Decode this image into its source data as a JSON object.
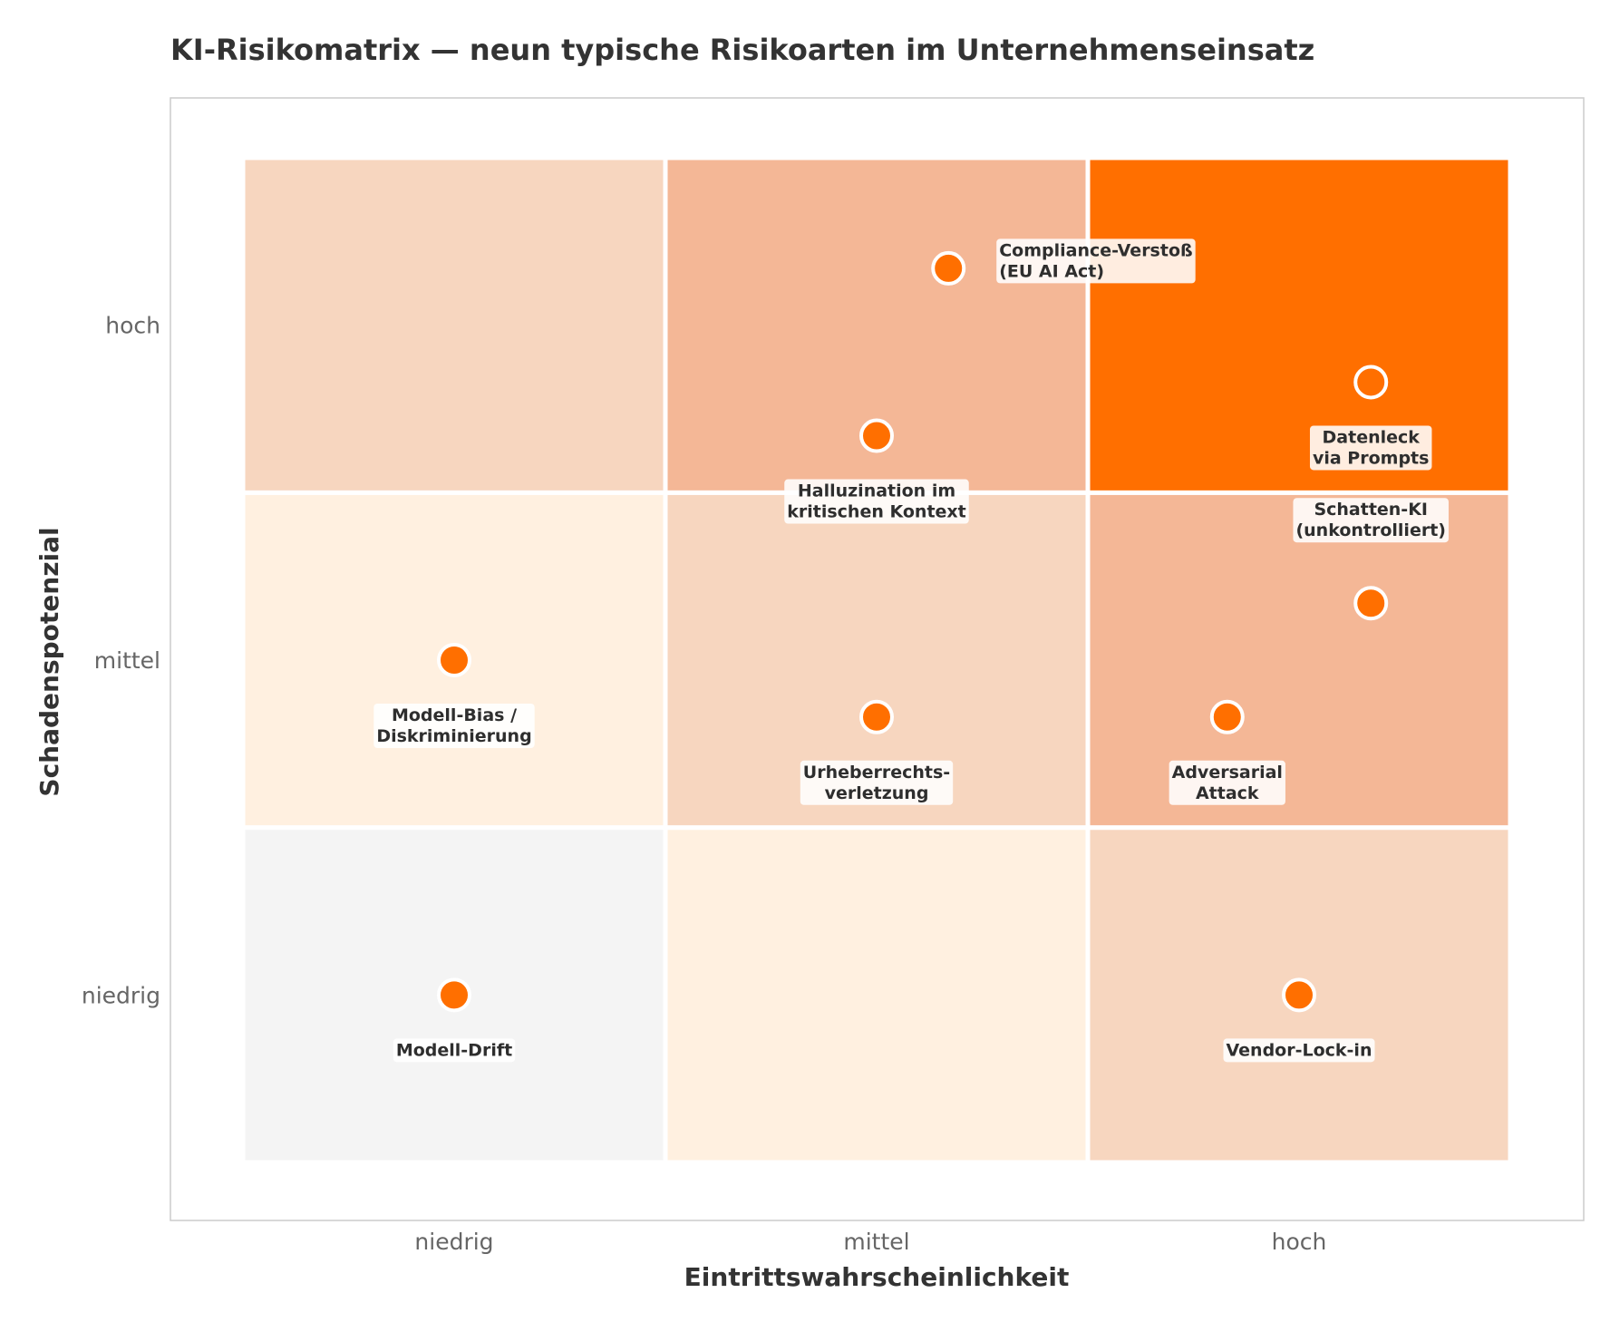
{
  "chart_data": {
    "type": "scatter",
    "title": "KI-Risikomatrix — neun typische Risikoarten im Unternehmenseinsatz",
    "xlabel": "Eintrittswahrscheinlichkeit",
    "ylabel": "Schadenspotenzial",
    "xlim": [
      -0.5,
      2.5
    ],
    "ylim": [
      -0.5,
      2.5
    ],
    "x_ticks": [
      "niedrig",
      "mittel",
      "hoch"
    ],
    "y_ticks": [
      "niedrig",
      "mittel",
      "hoch"
    ],
    "grid": false,
    "colors": {
      "point": "#ff6f00",
      "point_edge": "#ffffff",
      "frame": "#cccccc"
    },
    "cells": [
      {
        "x": 0,
        "y": 0,
        "color": "#f4f4f4"
      },
      {
        "x": 1,
        "y": 0,
        "color": "#fff0e0"
      },
      {
        "x": 2,
        "y": 0,
        "color": "#f7d6bf"
      },
      {
        "x": 0,
        "y": 1,
        "color": "#fff0e0"
      },
      {
        "x": 1,
        "y": 1,
        "color": "#f7d6bf"
      },
      {
        "x": 2,
        "y": 1,
        "color": "#f4b796"
      },
      {
        "x": 0,
        "y": 2,
        "color": "#f7d6bf"
      },
      {
        "x": 1,
        "y": 2,
        "color": "#f4b796"
      },
      {
        "x": 2,
        "y": 2,
        "color": "#ff6f00"
      }
    ],
    "points": [
      {
        "name": "Compliance-Verstoß\n(EU AI Act)",
        "x": 1.17,
        "y": 2.17,
        "label_pos": "right"
      },
      {
        "name": "Datenleck\nvia Prompts",
        "x": 2.17,
        "y": 1.83,
        "label_pos": "below"
      },
      {
        "name": "Halluzination im\nkritischen Kontext",
        "x": 1.0,
        "y": 1.67,
        "label_pos": "below"
      },
      {
        "name": "Schatten-KI\n(unkontrolliert)",
        "x": 2.17,
        "y": 1.17,
        "label_pos": "above"
      },
      {
        "name": "Modell-Bias /\nDiskriminierung",
        "x": 0.0,
        "y": 1.0,
        "label_pos": "below"
      },
      {
        "name": "Urheberrechts-\nverletzung",
        "x": 1.0,
        "y": 0.83,
        "label_pos": "below"
      },
      {
        "name": "Adversarial\nAttack",
        "x": 1.83,
        "y": 0.83,
        "label_pos": "below"
      },
      {
        "name": "Modell-Drift",
        "x": 0.0,
        "y": 0.0,
        "label_pos": "below"
      },
      {
        "name": "Vendor-Lock-in",
        "x": 2.0,
        "y": 0.0,
        "label_pos": "below"
      }
    ]
  }
}
